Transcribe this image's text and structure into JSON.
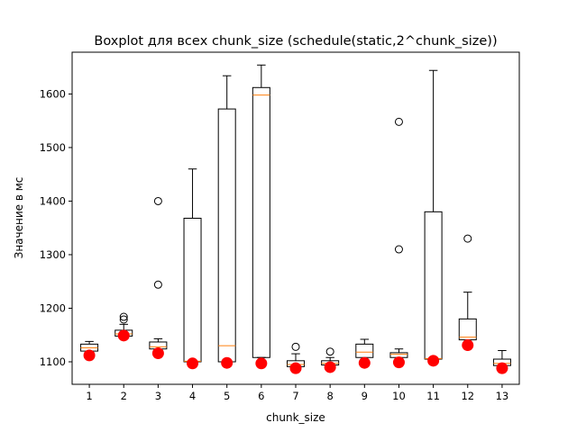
{
  "chart_data": {
    "type": "box",
    "title": "Boxplot для всех chunk_size (schedule(static,2^chunk_size))",
    "xlabel": "chunk_size",
    "ylabel": "Значение в мс",
    "categories": [
      "1",
      "2",
      "3",
      "4",
      "5",
      "6",
      "7",
      "8",
      "9",
      "10",
      "11",
      "12",
      "13"
    ],
    "y_ticks": [
      1100,
      1200,
      1300,
      1400,
      1500,
      1600
    ],
    "ylim": [
      1058,
      1678
    ],
    "xlim": [
      0.5,
      13.5
    ],
    "grid": false,
    "boxes": [
      {
        "category": "1",
        "whisker_low": 1118,
        "q1": 1120,
        "median": 1126,
        "q3": 1133,
        "whisker_high": 1138,
        "outliers": []
      },
      {
        "category": "2",
        "whisker_low": 1145,
        "q1": 1148,
        "median": 1152,
        "q3": 1159,
        "whisker_high": 1170,
        "outliers": [
          1179,
          1184
        ]
      },
      {
        "category": "3",
        "whisker_low": 1122,
        "q1": 1124,
        "median": 1128,
        "q3": 1137,
        "whisker_high": 1143,
        "outliers": [
          1244,
          1400
        ]
      },
      {
        "category": "4",
        "whisker_low": 1100,
        "q1": 1100,
        "median": 1101,
        "q3": 1368,
        "whisker_high": 1460,
        "outliers": []
      },
      {
        "category": "5",
        "whisker_low": 1100,
        "q1": 1100,
        "median": 1130,
        "q3": 1572,
        "whisker_high": 1634,
        "outliers": []
      },
      {
        "category": "6",
        "whisker_low": 1108,
        "q1": 1108,
        "median": 1598,
        "q3": 1612,
        "whisker_high": 1654,
        "outliers": []
      },
      {
        "category": "7",
        "whisker_low": 1088,
        "q1": 1091,
        "median": 1095,
        "q3": 1102,
        "whisker_high": 1115,
        "outliers": [
          1128
        ]
      },
      {
        "category": "8",
        "whisker_low": 1090,
        "q1": 1094,
        "median": 1097,
        "q3": 1102,
        "whisker_high": 1108,
        "outliers": [
          1119
        ]
      },
      {
        "category": "9",
        "whisker_low": 1100,
        "q1": 1108,
        "median": 1118,
        "q3": 1133,
        "whisker_high": 1142,
        "outliers": []
      },
      {
        "category": "10",
        "whisker_low": 1103,
        "q1": 1108,
        "median": 1114,
        "q3": 1117,
        "whisker_high": 1124,
        "outliers": [
          1310,
          1548
        ]
      },
      {
        "category": "11",
        "whisker_low": 1103,
        "q1": 1105,
        "median": 1106,
        "q3": 1380,
        "whisker_high": 1644,
        "outliers": []
      },
      {
        "category": "12",
        "whisker_low": 1138,
        "q1": 1141,
        "median": 1146,
        "q3": 1180,
        "whisker_high": 1230,
        "outliers": [
          1330
        ]
      },
      {
        "category": "13",
        "whisker_low": 1090,
        "q1": 1093,
        "median": 1097,
        "q3": 1105,
        "whisker_high": 1121,
        "outliers": []
      }
    ],
    "red_points": [
      1112,
      1149,
      1116,
      1097,
      1098,
      1097,
      1088,
      1090,
      1098,
      1099,
      1102,
      1131,
      1088
    ],
    "colors": {
      "box_edge": "#000000",
      "median": "#ff7f0e",
      "marker": "#ff0000",
      "background": "#ffffff"
    }
  }
}
